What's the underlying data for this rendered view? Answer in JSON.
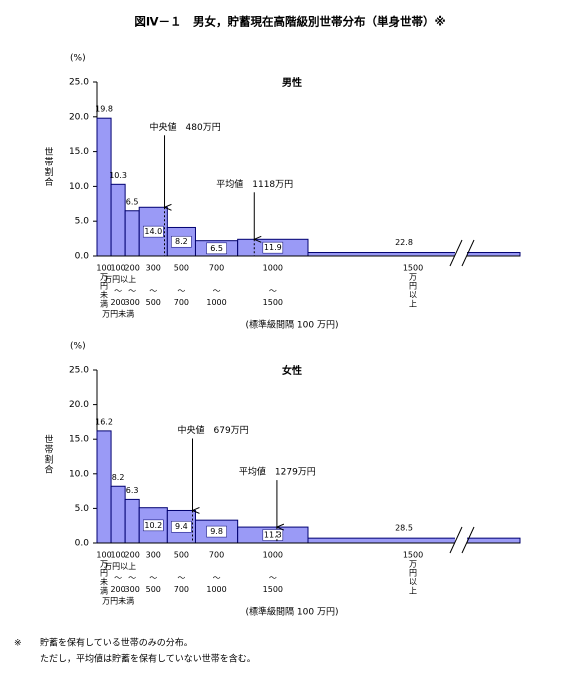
{
  "title": "図Ⅳ－１　男女，貯蓄現在高階級別世帯分布（単身世帯）※",
  "chart_data": [
    {
      "type": "histogram",
      "title": "男性",
      "y_unit": "(%)",
      "ylabel": "世帯割合",
      "ylim": [
        0,
        25
      ],
      "yticks": [
        {
          "value": 0,
          "label": "0.0"
        },
        {
          "value": 5,
          "label": "5.0"
        },
        {
          "value": 10,
          "label": "10.0"
        },
        {
          "value": 15,
          "label": "15.0"
        },
        {
          "value": 20,
          "label": "20.0"
        },
        {
          "value": 25,
          "label": "25.0"
        }
      ],
      "bin_starts": [
        0,
        100,
        200,
        300,
        500,
        700,
        1000,
        1500
      ],
      "values": [
        19.8,
        10.3,
        6.5,
        7.0,
        4.1,
        2.2,
        2.4,
        0.5
      ],
      "share_labels": [
        "19.8",
        "10.3",
        "6.5",
        "14.0",
        "8.2",
        "6.5",
        "11.9",
        "22.8"
      ],
      "x_bins": [
        [
          "100",
          "万",
          "円",
          "未",
          "満"
        ],
        [
          "100",
          "万円以上",
          "〜",
          "200",
          "万円未満"
        ],
        [
          "200",
          "〜",
          "300"
        ],
        [
          "300",
          "〜",
          "500"
        ],
        [
          "500",
          "〜",
          "700"
        ],
        [
          "700",
          "〜",
          "1000"
        ],
        [
          "1000",
          "〜",
          "1500"
        ],
        [
          "1500",
          "万",
          "円",
          "以",
          "上"
        ]
      ],
      "xlabel": "(標準級間隔 100 万円)",
      "median": {
        "value": 480,
        "label": "中央値　480万円"
      },
      "mean": {
        "value": 1118,
        "label": "平均値　1118万円"
      },
      "color": "#9a9af6"
    },
    {
      "type": "histogram",
      "title": "女性",
      "y_unit": "(%)",
      "ylabel": "世帯割合",
      "ylim": [
        0,
        25
      ],
      "yticks": [
        {
          "value": 0,
          "label": "0.0"
        },
        {
          "value": 5,
          "label": "5.0"
        },
        {
          "value": 10,
          "label": "10.0"
        },
        {
          "value": 15,
          "label": "15.0"
        },
        {
          "value": 20,
          "label": "20.0"
        },
        {
          "value": 25,
          "label": "25.0"
        }
      ],
      "bin_starts": [
        0,
        100,
        200,
        300,
        500,
        700,
        1000,
        1500
      ],
      "values": [
        16.2,
        8.2,
        6.3,
        5.1,
        4.7,
        3.3,
        2.3,
        0.7
      ],
      "share_labels": [
        "16.2",
        "8.2",
        "6.3",
        "10.2",
        "9.4",
        "9.8",
        "11.3",
        "28.5"
      ],
      "x_bins": [
        [
          "100",
          "万",
          "円",
          "未",
          "満"
        ],
        [
          "100",
          "万円以上",
          "〜",
          "200",
          "万円未満"
        ],
        [
          "200",
          "〜",
          "300"
        ],
        [
          "300",
          "〜",
          "500"
        ],
        [
          "500",
          "〜",
          "700"
        ],
        [
          "700",
          "〜",
          "1000"
        ],
        [
          "1000",
          "〜",
          "1500"
        ],
        [
          "1500",
          "万",
          "円",
          "以",
          "上"
        ]
      ],
      "xlabel": "(標準級間隔 100 万円)",
      "median": {
        "value": 679,
        "label": "中央値　679万円"
      },
      "mean": {
        "value": 1279,
        "label": "平均値　1279万円"
      },
      "color": "#9a9af6"
    }
  ],
  "footnote": {
    "mark": "※",
    "lines": [
      "貯蓄を保有している世帯のみの分布。",
      "ただし，平均値は貯蓄を保有していない世帯を含む。"
    ]
  }
}
